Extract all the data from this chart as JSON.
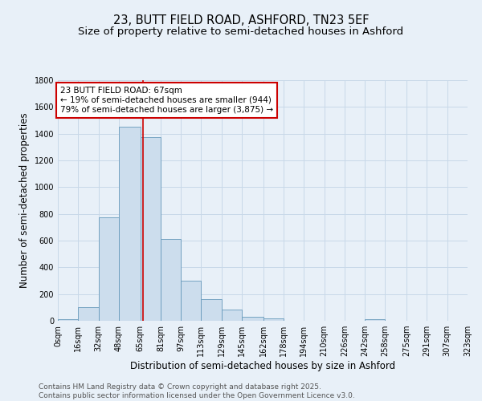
{
  "title_line1": "23, BUTT FIELD ROAD, ASHFORD, TN23 5EF",
  "title_line2": "Size of property relative to semi-detached houses in Ashford",
  "xlabel": "Distribution of semi-detached houses by size in Ashford",
  "ylabel": "Number of semi-detached properties",
  "annotation_text": "23 BUTT FIELD ROAD: 67sqm\n← 19% of semi-detached houses are smaller (944)\n79% of semi-detached houses are larger (3,875) →",
  "bin_edges": [
    0,
    16,
    32,
    48,
    65,
    81,
    97,
    113,
    129,
    145,
    162,
    178,
    194,
    210,
    226,
    242,
    258,
    275,
    291,
    307,
    323
  ],
  "bin_counts": [
    15,
    100,
    775,
    1450,
    1375,
    610,
    300,
    165,
    85,
    30,
    20,
    0,
    0,
    0,
    0,
    15,
    0,
    0,
    0,
    0
  ],
  "bar_color": "#ccdded",
  "bar_edge_color": "#6699bb",
  "vline_color": "#cc0000",
  "vline_x": 67,
  "annotation_box_color": "#ffffff",
  "annotation_box_edge": "#cc0000",
  "grid_color": "#c8d8e8",
  "background_color": "#e8f0f8",
  "ylim": [
    0,
    1800
  ],
  "yticks": [
    0,
    200,
    400,
    600,
    800,
    1000,
    1200,
    1400,
    1600,
    1800
  ],
  "tick_labels": [
    "0sqm",
    "16sqm",
    "32sqm",
    "48sqm",
    "65sqm",
    "81sqm",
    "97sqm",
    "113sqm",
    "129sqm",
    "145sqm",
    "162sqm",
    "178sqm",
    "194sqm",
    "210sqm",
    "226sqm",
    "242sqm",
    "258sqm",
    "275sqm",
    "291sqm",
    "307sqm",
    "323sqm"
  ],
  "footer_text": "Contains HM Land Registry data © Crown copyright and database right 2025.\nContains public sector information licensed under the Open Government Licence v3.0.",
  "title_fontsize": 10.5,
  "subtitle_fontsize": 9.5,
  "axis_label_fontsize": 8.5,
  "tick_fontsize": 7,
  "annotation_fontsize": 7.5,
  "footer_fontsize": 6.5
}
